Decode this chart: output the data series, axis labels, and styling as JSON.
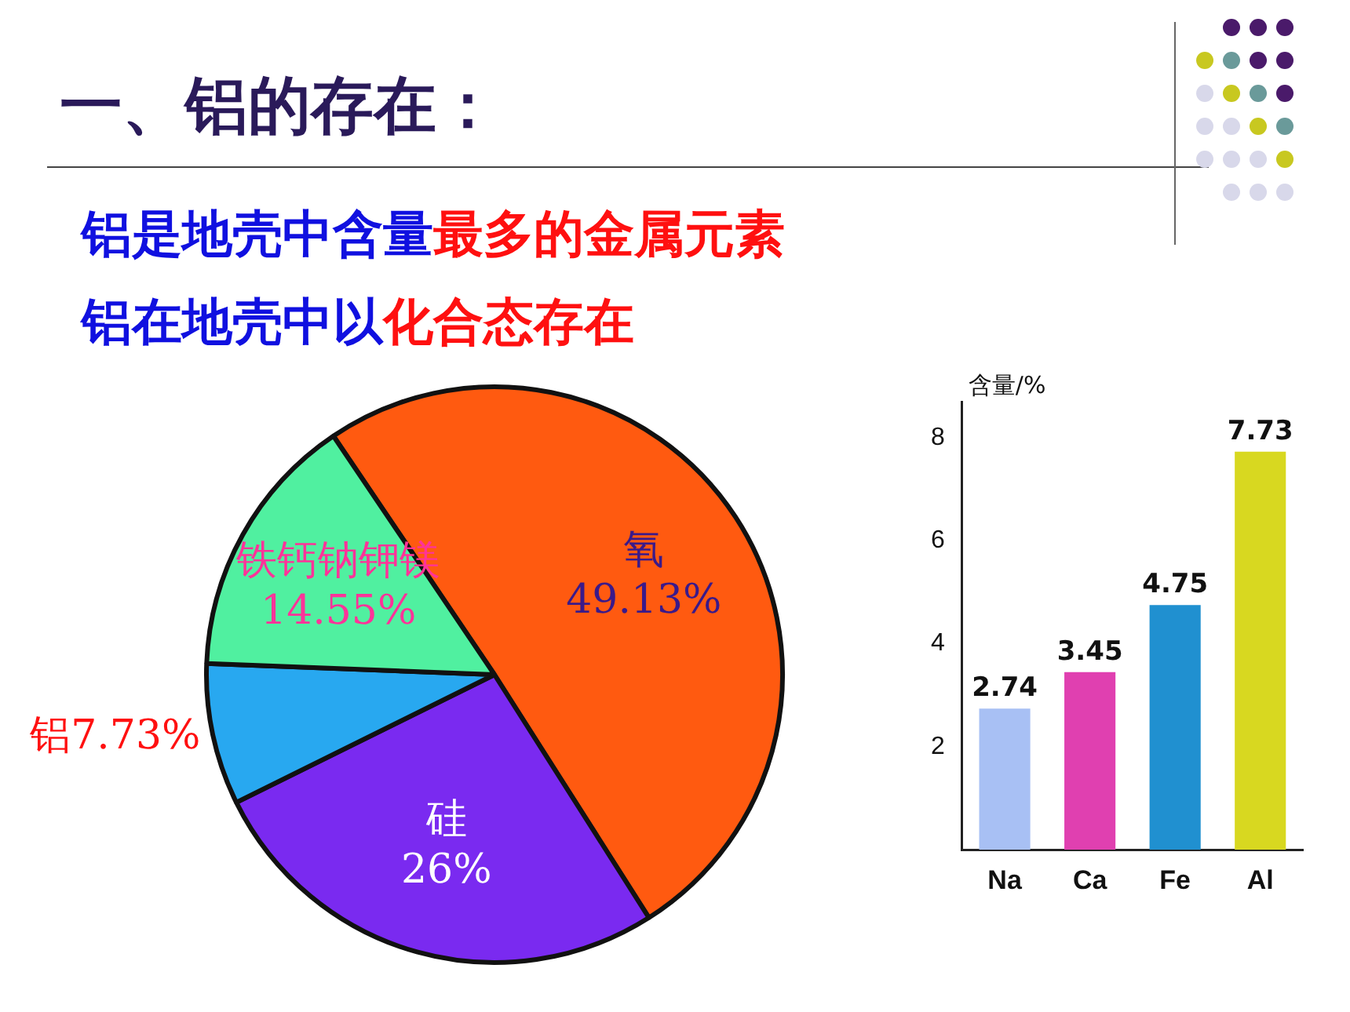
{
  "chart_data": [
    {
      "type": "pie",
      "title": "一、铝的存在：",
      "annotations": [
        "铝是地壳中含量",
        "最多的金属元素",
        "铝在地壳中以",
        "化合态存在"
      ],
      "categories": [
        "氧",
        "硅",
        "铝",
        "铁钙钠钾镁"
      ],
      "values": [
        49.13,
        26,
        7.73,
        14.55
      ],
      "value_labels": [
        "49.13%",
        "26%",
        "7.73%",
        "14.55%"
      ],
      "colors": [
        "#ff5a10",
        "#7a2af0",
        "#28a8f0",
        "#50f0a0"
      ]
    },
    {
      "type": "bar",
      "ylabel": "含量/%",
      "categories": [
        "Na",
        "Ca",
        "Fe",
        "Al"
      ],
      "values": [
        2.74,
        3.45,
        4.75,
        7.73
      ],
      "colors": [
        "#a8c0f4",
        "#e040b0",
        "#2090d0",
        "#d8d820"
      ],
      "ylim": [
        0,
        8.7
      ],
      "yticks": [
        2,
        4,
        6,
        8
      ],
      "data_labels": true,
      "grid": false,
      "legend": false
    }
  ]
}
